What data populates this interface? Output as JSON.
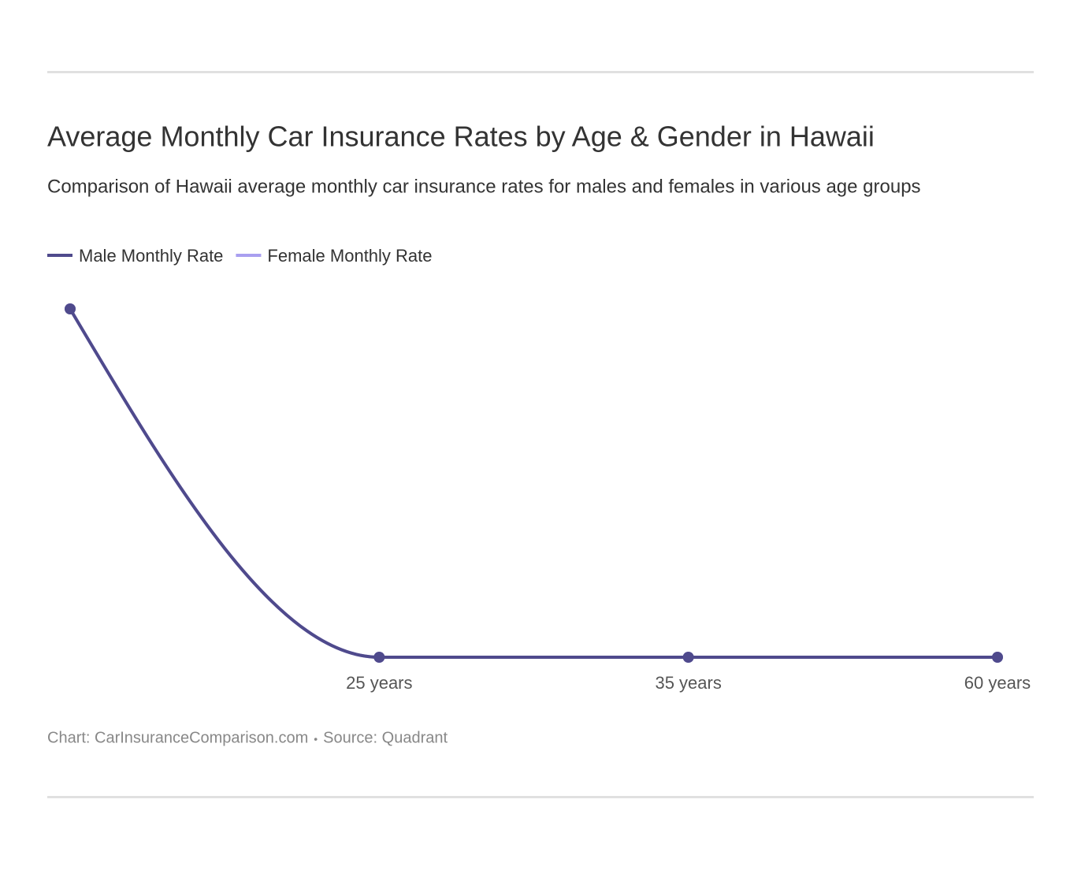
{
  "chart_data": {
    "type": "line",
    "title": "Average Monthly Car Insurance Rates by Age & Gender in Hawaii",
    "subtitle": "Comparison of Hawaii average monthly car insurance rates for males and females in various age groups",
    "categories": [
      null,
      "25 years",
      "35 years",
      "60 years"
    ],
    "series": [
      {
        "name": "Male Monthly Rate",
        "color": "#4f4a8c",
        "values": [
          450,
          150,
          150,
          150
        ]
      },
      {
        "name": "Female Monthly Rate",
        "color": "#a99ff0",
        "values": [
          450,
          150,
          150,
          150
        ]
      }
    ],
    "footer": {
      "chart": "Chart: CarInsuranceComparison.com",
      "separator": "•",
      "source": "Source: Quadrant"
    }
  }
}
